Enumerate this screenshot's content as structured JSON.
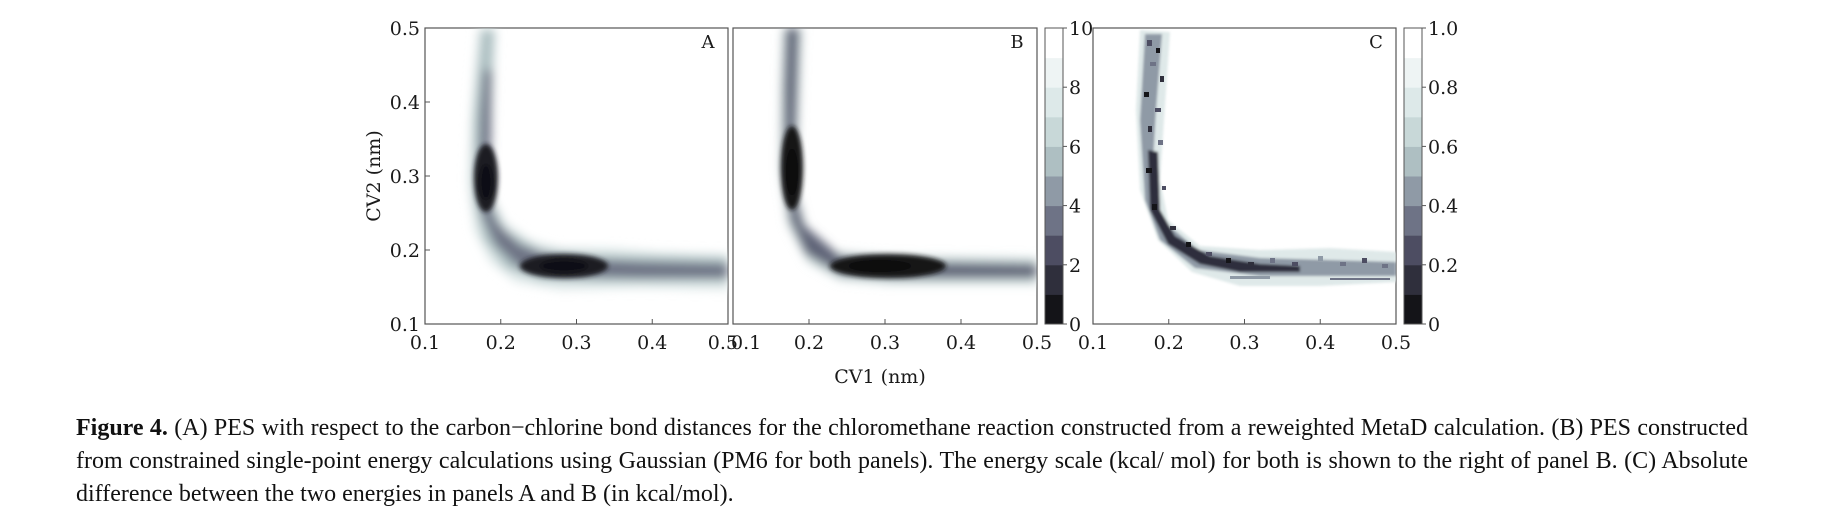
{
  "figure": {
    "panels": [
      "A",
      "B",
      "C"
    ],
    "xlabel": "CV1 (nm)",
    "ylabel": "CV2 (nm)",
    "x_ticks": [
      "0.1",
      "0.2",
      "0.3",
      "0.4",
      "0.5"
    ],
    "y_ticks": [
      "0.1",
      "0.2",
      "0.3",
      "0.4",
      "0.5"
    ],
    "colorbar_energy_ticks": [
      "0",
      "2",
      "4",
      "6",
      "8",
      "10"
    ],
    "colorbar_diff_ticks": [
      "0",
      "0.2",
      "0.4",
      "0.6",
      "0.8",
      "1.0"
    ],
    "colormap": [
      "#141418",
      "#2f2f3c",
      "#4d4d62",
      "#6e7386",
      "#8f9aa6",
      "#aebfc2",
      "#c8d8d8",
      "#dde9e9",
      "#eef4f4",
      "#ffffff"
    ]
  },
  "chart_data": [
    {
      "type": "heatmap",
      "panel": "A",
      "xlabel": "CV1 (nm)",
      "ylabel": "CV2 (nm)",
      "xlim": [
        0.1,
        0.5
      ],
      "ylim": [
        0.1,
        0.5
      ],
      "minima": [
        {
          "x": 0.18,
          "y": 0.29
        },
        {
          "x": 0.29,
          "y": 0.18
        }
      ],
      "colorbar": {
        "range": [
          0,
          10
        ],
        "ticks": [
          0,
          2,
          4,
          6,
          8,
          10
        ]
      }
    },
    {
      "type": "heatmap",
      "panel": "B",
      "xlabel": "CV1 (nm)",
      "xlim": [
        0.1,
        0.5
      ],
      "ylim": [
        0.1,
        0.5
      ],
      "minima": [
        {
          "x": 0.18,
          "y": 0.3
        },
        {
          "x": 0.29,
          "y": 0.18
        }
      ],
      "colorbar": {
        "range": [
          0,
          10
        ],
        "ticks": [
          0,
          2,
          4,
          6,
          8,
          10
        ]
      }
    },
    {
      "type": "heatmap",
      "panel": "C",
      "xlim": [
        0.1,
        0.5
      ],
      "ylim": [
        0.1,
        0.5
      ],
      "colorbar": {
        "range": [
          0,
          1.0
        ],
        "ticks": [
          0,
          0.2,
          0.4,
          0.6,
          0.8,
          1.0
        ]
      }
    }
  ],
  "caption": {
    "label": "Figure 4.",
    "text": " (A) PES with respect to the carbon−chlorine bond distances for the chloromethane reaction constructed from a reweighted MetaD calculation. (B) PES constructed from constrained single-point energy calculations using Gaussian (PM6 for both panels). The energy scale (kcal/ mol) for both is shown to the right of panel B. (C) Absolute difference between the two energies in panels A and B (in kcal/mol)."
  }
}
